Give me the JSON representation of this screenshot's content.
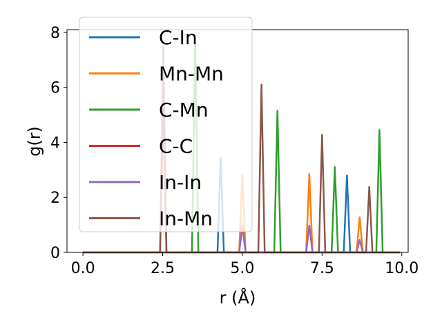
{
  "chart_data": {
    "type": "line",
    "title": "",
    "xlabel": "r (Å)",
    "ylabel": "g(r)",
    "xlim": [
      -0.5,
      10.2
    ],
    "ylim": [
      0,
      8.1
    ],
    "xticks": [
      0.0,
      2.5,
      5.0,
      7.5,
      10.0
    ],
    "xtick_labels": [
      "0.0",
      "2.5",
      "5.0",
      "7.5",
      "10.0"
    ],
    "yticks": [
      0,
      2,
      4,
      6,
      8
    ],
    "ytick_labels": [
      "0",
      "2",
      "4",
      "6",
      "8"
    ],
    "x_start": 0.0,
    "x_end": 9.95,
    "peak_half_width": 0.1,
    "grid": false,
    "legend_position": "top-left",
    "series": [
      {
        "name": "C-In",
        "color": "#1f77b4",
        "peaks": [
          {
            "x": 4.32,
            "y": 3.45
          },
          {
            "x": 8.28,
            "y": 2.8
          }
        ]
      },
      {
        "name": "Mn-Mn",
        "color": "#ff7f0e",
        "peaks": [
          {
            "x": 5.0,
            "y": 2.85
          },
          {
            "x": 7.1,
            "y": 2.85
          },
          {
            "x": 8.68,
            "y": 1.28
          }
        ]
      },
      {
        "name": "C-Mn",
        "color": "#2ca02c",
        "peaks": [
          {
            "x": 3.52,
            "y": 7.9
          },
          {
            "x": 6.1,
            "y": 5.15
          },
          {
            "x": 7.9,
            "y": 3.1
          },
          {
            "x": 9.3,
            "y": 4.45
          }
        ]
      },
      {
        "name": "C-C",
        "color": "#d62728",
        "peaks": [
          {
            "x": 2.52,
            "y": 5.2
          }
        ]
      },
      {
        "name": "In-In",
        "color": "#9467bd",
        "peaks": [
          {
            "x": 5.0,
            "y": 0.98
          },
          {
            "x": 7.1,
            "y": 0.98
          },
          {
            "x": 8.68,
            "y": 0.45
          }
        ]
      },
      {
        "name": "In-Mn",
        "color": "#8c564b",
        "peaks": [
          {
            "x": 2.52,
            "y": 7.5
          },
          {
            "x": 5.6,
            "y": 6.1
          },
          {
            "x": 7.5,
            "y": 4.28
          },
          {
            "x": 8.98,
            "y": 2.38
          }
        ]
      }
    ]
  }
}
